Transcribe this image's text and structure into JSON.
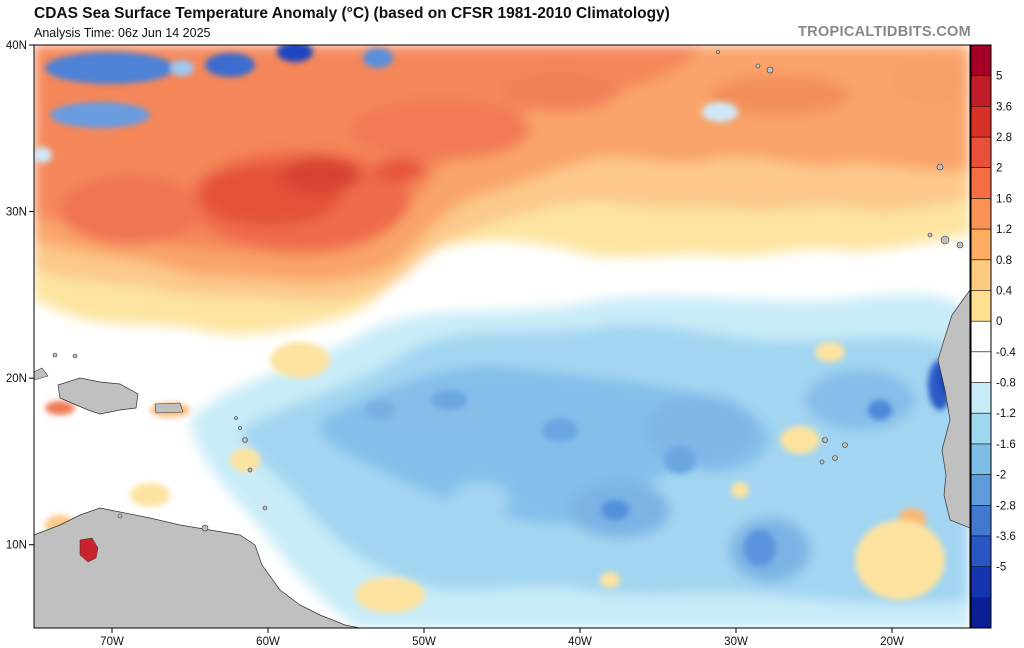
{
  "header": {
    "title": "CDAS Sea Surface Temperature Anomaly (°C) (based on CFSR 1981-2010 Climatology)",
    "subtitle": "Analysis Time: 06z Jun 14 2025",
    "credit": "TROPICALTIDBITS.COM"
  },
  "map": {
    "lon_range": [
      -75,
      -15
    ],
    "lat_range": [
      5,
      40
    ],
    "lon_ticks": [
      {
        "lon": -70,
        "label": "70W"
      },
      {
        "lon": -60,
        "label": "60W"
      },
      {
        "lon": -50,
        "label": "50W"
      },
      {
        "lon": -40,
        "label": "40W"
      },
      {
        "lon": -30,
        "label": "30W"
      },
      {
        "lon": -20,
        "label": "20W"
      }
    ],
    "lat_ticks": [
      {
        "lat": 40,
        "label": "40N"
      },
      {
        "lat": 30,
        "label": "30N"
      },
      {
        "lat": 20,
        "label": "20N"
      },
      {
        "lat": 10,
        "label": "10N"
      }
    ],
    "land_color": "#c0c0c0",
    "ocean_neutral_color": "#ffffff"
  },
  "colorbar": {
    "labels": [
      "5",
      "3.6",
      "2.8",
      "2",
      "1.6",
      "1.2",
      "0.8",
      "0.4",
      "0",
      "-0.4",
      "-0.8",
      "-1.2",
      "-1.6",
      "-2",
      "-2.8",
      "-3.6",
      "-5"
    ],
    "colors": [
      "#a50026",
      "#c01d27",
      "#d73027",
      "#e8503a",
      "#f46d43",
      "#f99254",
      "#fdae61",
      "#fec980",
      "#fee090",
      "#ffffff",
      "#ffffff",
      "#c7ecf7",
      "#9fd8ee",
      "#7dbee6",
      "#5e9cdb",
      "#4179d0",
      "#2a56c3",
      "#1535b0",
      "#0a1e96"
    ]
  }
}
